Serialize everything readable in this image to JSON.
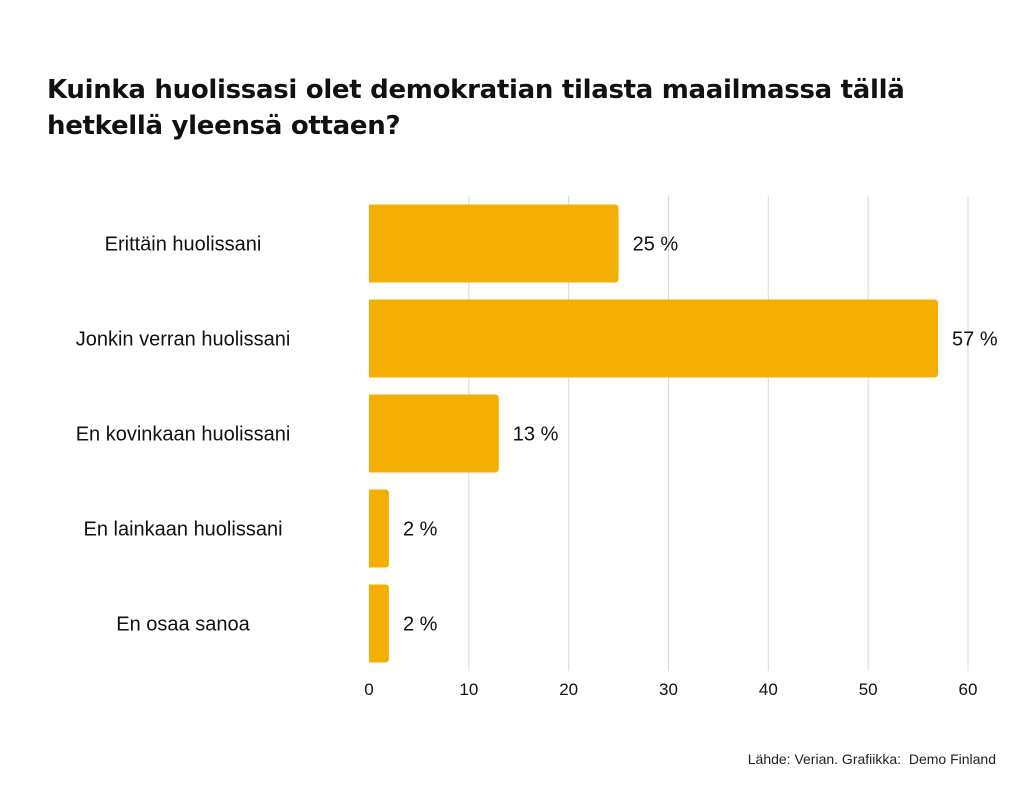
{
  "title": "Kuinka huolissasi olet demokratian tilasta maailmassa tällä hetkellä yleensä ottaen?",
  "source": "Lähde: Verian. Grafiikka:  Demo Finland",
  "colors": {
    "bar": "#F5AF02",
    "grid": "#D9D9D9",
    "text": "#111111"
  },
  "chart_data": {
    "type": "bar",
    "orientation": "horizontal",
    "title": "Kuinka huolissasi olet demokratian tilasta maailmassa tällä hetkellä yleensä ottaen?",
    "categories": [
      "Erittäin huolissani",
      "Jonkin verran huolissani",
      "En kovinkaan huolissani",
      "En lainkaan huolissani",
      "En osaa sanoa"
    ],
    "values": [
      25,
      57,
      13,
      2,
      2
    ],
    "data_labels": [
      "25 %",
      "57 %",
      "13 %",
      "2 %",
      "2 %"
    ],
    "xlim": [
      0,
      60
    ],
    "xticks": [
      "0",
      "10",
      "20",
      "30",
      "40",
      "50",
      "60"
    ],
    "grid": true,
    "legend": "none"
  }
}
